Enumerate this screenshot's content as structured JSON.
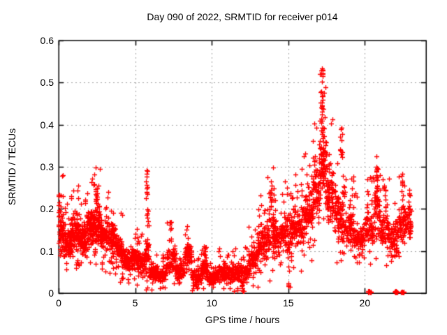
{
  "chart_data": {
    "type": "scatter",
    "title": "Day 090 of 2022, SRMTID for receiver p014",
    "xlabel": "GPS time / hours",
    "ylabel": "SRMTID / TECUs",
    "xlim": [
      0,
      24
    ],
    "ylim": [
      0,
      0.6
    ],
    "xticks": {
      "values": [
        0,
        5,
        10,
        15,
        20
      ],
      "labels": [
        "0",
        "5",
        "10",
        "15",
        "20"
      ]
    },
    "yticks": {
      "values": [
        0,
        0.1,
        0.2,
        0.3,
        0.4,
        0.5,
        0.6
      ],
      "labels": [
        "0",
        "0.1",
        "0.2",
        "0.3",
        "0.4",
        "0.5",
        "0.6"
      ]
    },
    "grid": {
      "on": true,
      "color": "#a0a0a0",
      "dash": [
        2,
        4
      ]
    },
    "axis_color": "#000000",
    "background": "#ffffff",
    "legend": null,
    "marker": {
      "shape": "plus",
      "color": "#ff0000",
      "size": 7
    },
    "seed": 20220090,
    "bands_comment": "each band = [start_hour, end_hour, n_points, center_value_TECUs, half_spread_TECUs] describing the dense scatter envelope read from the plot",
    "bands": [
      [
        0.0,
        0.3,
        60,
        0.15,
        0.07
      ],
      [
        0.3,
        0.8,
        90,
        0.12,
        0.05
      ],
      [
        0.8,
        1.3,
        100,
        0.15,
        0.06
      ],
      [
        1.3,
        1.8,
        100,
        0.13,
        0.05
      ],
      [
        1.8,
        2.3,
        100,
        0.16,
        0.06
      ],
      [
        2.3,
        2.7,
        80,
        0.17,
        0.07
      ],
      [
        2.7,
        3.2,
        90,
        0.14,
        0.06
      ],
      [
        3.2,
        3.7,
        80,
        0.13,
        0.06
      ],
      [
        3.7,
        4.2,
        80,
        0.1,
        0.05
      ],
      [
        4.2,
        4.7,
        70,
        0.075,
        0.04
      ],
      [
        4.7,
        5.2,
        70,
        0.08,
        0.045
      ],
      [
        5.2,
        5.6,
        60,
        0.07,
        0.04
      ],
      [
        5.6,
        5.9,
        40,
        0.09,
        0.06
      ],
      [
        5.9,
        6.4,
        70,
        0.05,
        0.03
      ],
      [
        6.4,
        7.0,
        80,
        0.045,
        0.025
      ],
      [
        7.0,
        7.6,
        70,
        0.08,
        0.05
      ],
      [
        7.6,
        8.2,
        80,
        0.055,
        0.03
      ],
      [
        8.2,
        8.7,
        70,
        0.09,
        0.04
      ],
      [
        8.7,
        9.3,
        80,
        0.04,
        0.025
      ],
      [
        9.3,
        9.7,
        70,
        0.055,
        0.035
      ],
      [
        9.7,
        10.3,
        80,
        0.035,
        0.02
      ],
      [
        10.3,
        11.0,
        90,
        0.05,
        0.03
      ],
      [
        11.0,
        11.7,
        90,
        0.05,
        0.03
      ],
      [
        11.7,
        12.4,
        90,
        0.05,
        0.035
      ],
      [
        12.4,
        13.0,
        80,
        0.08,
        0.045
      ],
      [
        13.0,
        13.6,
        80,
        0.12,
        0.06
      ],
      [
        13.6,
        14.1,
        70,
        0.15,
        0.08
      ],
      [
        14.1,
        14.7,
        80,
        0.13,
        0.06
      ],
      [
        14.7,
        15.3,
        80,
        0.14,
        0.07
      ],
      [
        15.3,
        16.0,
        90,
        0.16,
        0.08
      ],
      [
        16.0,
        16.6,
        90,
        0.19,
        0.08
      ],
      [
        16.6,
        17.0,
        70,
        0.24,
        0.09
      ],
      [
        17.0,
        17.5,
        90,
        0.3,
        0.12
      ],
      [
        17.5,
        18.0,
        80,
        0.24,
        0.1
      ],
      [
        18.0,
        18.6,
        90,
        0.18,
        0.09
      ],
      [
        18.6,
        19.3,
        90,
        0.15,
        0.07
      ],
      [
        19.3,
        20.0,
        80,
        0.13,
        0.06
      ],
      [
        20.0,
        20.6,
        70,
        0.15,
        0.07
      ],
      [
        20.6,
        21.0,
        60,
        0.2,
        0.08
      ],
      [
        21.0,
        21.6,
        70,
        0.15,
        0.07
      ],
      [
        21.6,
        22.2,
        70,
        0.13,
        0.06
      ],
      [
        22.2,
        22.7,
        60,
        0.17,
        0.07
      ],
      [
        22.7,
        23.05,
        40,
        0.17,
        0.06
      ]
    ],
    "columns_comment": "isolated spikes / outlier columns = [hour, y_min, y_max, n_points]",
    "columns": [
      [
        0.05,
        0.18,
        0.24,
        8
      ],
      [
        2.45,
        0.2,
        0.25,
        12
      ],
      [
        5.75,
        0.2,
        0.31,
        12
      ],
      [
        5.8,
        0.14,
        0.2,
        8
      ],
      [
        7.3,
        0.12,
        0.17,
        8
      ],
      [
        9.0,
        0.01,
        0.025,
        5
      ],
      [
        9.55,
        0.09,
        0.115,
        6
      ],
      [
        12.0,
        0.004,
        0.02,
        6
      ],
      [
        13.85,
        0.2,
        0.265,
        10
      ],
      [
        15.05,
        0.01,
        0.03,
        4
      ],
      [
        17.2,
        0.38,
        0.535,
        25
      ],
      [
        17.25,
        0.3,
        0.4,
        15
      ],
      [
        18.45,
        0.3,
        0.395,
        12
      ],
      [
        20.8,
        0.24,
        0.3,
        14
      ],
      [
        21.3,
        0.2,
        0.255,
        6
      ],
      [
        22.45,
        0.22,
        0.285,
        8
      ]
    ],
    "zero_clusters_comment": "dense clumps of points at SRMTID = 0 on the axis = [hour, n_points]",
    "zero_clusters": [
      [
        20.3,
        12
      ],
      [
        22.05,
        10
      ],
      [
        22.45,
        10
      ]
    ],
    "observed_extremes": {
      "max_value": 0.53,
      "max_value_hour": 17.2,
      "quiet_minimum_hours": [
        9,
        12
      ],
      "last_data_hour": 23.0
    }
  }
}
